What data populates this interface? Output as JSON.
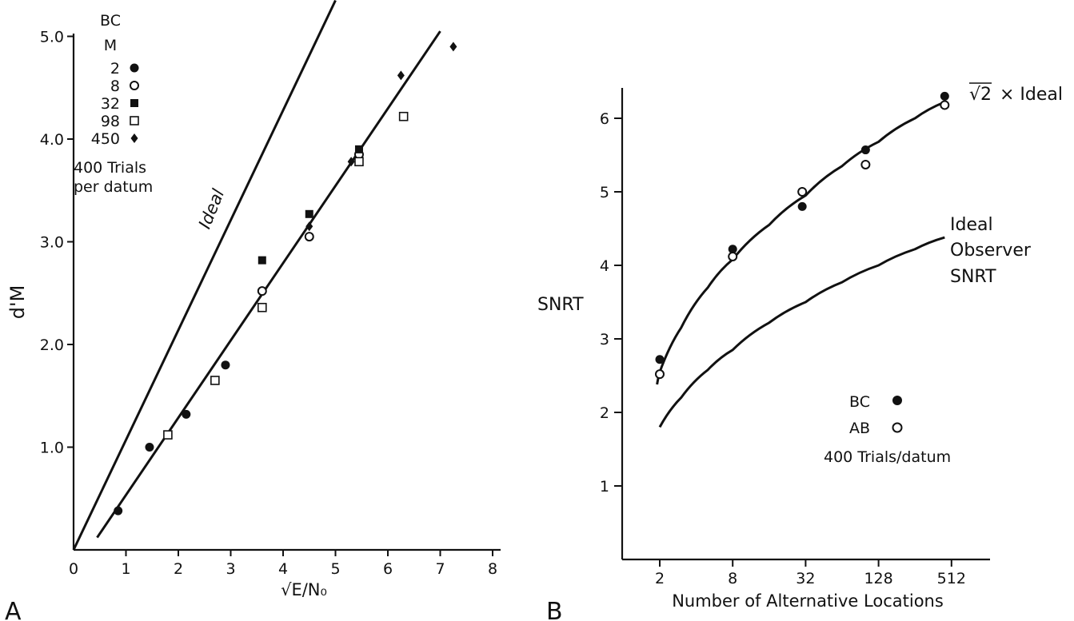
{
  "chart_data": [
    {
      "panel": "A",
      "type": "scatter",
      "xlabel": "√E/N₀",
      "ylabel": "d'M",
      "xlim": [
        0,
        8
      ],
      "ylim": [
        0,
        5
      ],
      "x_ticks": [
        "0",
        "1",
        "2",
        "3",
        "4",
        "5",
        "6",
        "7",
        "8"
      ],
      "y_ticks": [
        "1.0",
        "2.0",
        "3.0",
        "4.0",
        "5.0"
      ],
      "legend": {
        "title_line1": "BC",
        "title_line2": "M",
        "entries": [
          {
            "label": "2",
            "marker": "filled-circle"
          },
          {
            "label": "8",
            "marker": "open-circle"
          },
          {
            "label": "32",
            "marker": "filled-square"
          },
          {
            "label": "98",
            "marker": "open-square"
          },
          {
            "label": "450",
            "marker": "filled-diamond"
          }
        ],
        "note_line1": "400 Trials",
        "note_line2": "per datum"
      },
      "series": [
        {
          "name": "2",
          "marker": "filled-circle",
          "points": [
            [
              0.85,
              0.38
            ],
            [
              1.45,
              1.0
            ],
            [
              2.15,
              1.32
            ],
            [
              2.9,
              1.8
            ]
          ]
        },
        {
          "name": "8",
          "marker": "open-circle",
          "points": [
            [
              3.6,
              2.52
            ],
            [
              4.5,
              3.05
            ],
            [
              5.45,
              3.85
            ]
          ]
        },
        {
          "name": "32",
          "marker": "filled-square",
          "points": [
            [
              3.6,
              2.82
            ],
            [
              4.5,
              3.27
            ],
            [
              5.45,
              3.9
            ]
          ]
        },
        {
          "name": "98",
          "marker": "open-square",
          "points": [
            [
              1.8,
              1.12
            ],
            [
              2.7,
              1.65
            ],
            [
              3.6,
              2.36
            ],
            [
              5.45,
              3.78
            ],
            [
              6.3,
              4.22
            ]
          ]
        },
        {
          "name": "450",
          "marker": "filled-diamond",
          "points": [
            [
              4.5,
              3.15
            ],
            [
              5.3,
              3.78
            ],
            [
              6.25,
              4.62
            ],
            [
              7.25,
              4.9
            ]
          ]
        }
      ],
      "lines": [
        {
          "label": "Ideal",
          "from": [
            0,
            0
          ],
          "to": [
            5.0,
            5.35
          ]
        },
        {
          "label": "",
          "from": [
            0.45,
            0.12
          ],
          "to": [
            7.0,
            5.05
          ]
        }
      ],
      "panel_label": "A"
    },
    {
      "panel": "B",
      "type": "scatter",
      "xlabel": "Number of Alternative Locations",
      "ylabel": "SNRT",
      "xscale": "log2",
      "xlim": [
        1,
        1024
      ],
      "ylim": [
        0,
        6.5
      ],
      "x_ticks": [
        "2",
        "8",
        "32",
        "128",
        "512"
      ],
      "y_ticks": [
        "1",
        "2",
        "3",
        "4",
        "5",
        "6"
      ],
      "series": [
        {
          "name": "BC",
          "marker": "filled-circle",
          "points": [
            [
              2,
              2.72
            ],
            [
              8,
              4.22
            ],
            [
              30,
              4.8
            ],
            [
              100,
              5.57
            ],
            [
              450,
              6.3
            ]
          ]
        },
        {
          "name": "AB",
          "marker": "open-circle",
          "points": [
            [
              2,
              2.52
            ],
            [
              8,
              4.12
            ],
            [
              30,
              5.0
            ],
            [
              100,
              5.37
            ],
            [
              450,
              6.18
            ]
          ]
        }
      ],
      "curves": [
        {
          "label_prefix": "√2",
          "label_rest": "× Ideal",
          "points": [
            [
              1.9,
              2.38
            ],
            [
              2,
              2.55
            ],
            [
              3,
              3.15
            ],
            [
              5,
              3.7
            ],
            [
              8,
              4.08
            ],
            [
              16,
              4.55
            ],
            [
              32,
              4.95
            ],
            [
              64,
              5.35
            ],
            [
              128,
              5.68
            ],
            [
              256,
              6.0
            ],
            [
              450,
              6.22
            ]
          ]
        },
        {
          "label_line1": "Ideal",
          "label_line2": "Observer",
          "label_line3": "SNRT",
          "points": [
            [
              2,
              1.8
            ],
            [
              3,
              2.2
            ],
            [
              5,
              2.58
            ],
            [
              8,
              2.85
            ],
            [
              16,
              3.22
            ],
            [
              32,
              3.5
            ],
            [
              64,
              3.77
            ],
            [
              128,
              4.0
            ],
            [
              256,
              4.22
            ],
            [
              450,
              4.38
            ]
          ]
        }
      ],
      "legend": {
        "entries": [
          {
            "label": "BC",
            "marker": "filled-circle"
          },
          {
            "label": "AB",
            "marker": "open-circle"
          }
        ],
        "note": "400 Trials/datum"
      },
      "panel_label": "B"
    }
  ]
}
